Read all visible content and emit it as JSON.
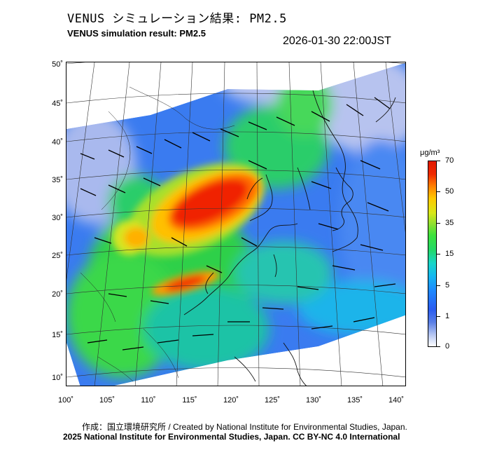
{
  "header": {
    "title_jp": "VENUS シミュレーション結果: PM2.5",
    "title_en": "VENUS simulation result: PM2.5",
    "timestamp": "2026-01-30 22:00JST"
  },
  "map": {
    "lat_labels": [
      "50˚",
      "45˚",
      "40˚",
      "35˚",
      "30˚",
      "25˚",
      "20˚",
      "15˚",
      "10˚"
    ],
    "lon_labels": [
      "100˚",
      "105˚",
      "110˚",
      "115˚",
      "120˚",
      "125˚",
      "130˚",
      "135˚",
      "140˚"
    ],
    "lat_range": [
      9,
      51
    ],
    "lon_range": [
      100,
      141
    ]
  },
  "colorbar": {
    "unit": "μg/m³",
    "labels": [
      "70",
      "50",
      "35",
      "15",
      "5",
      "1",
      "0"
    ],
    "colors": {
      "clean": "#ffffff",
      "low": "#2a5cf0",
      "moderate": "#22d868",
      "high": "#ffc800",
      "very_high": "#e01800"
    }
  },
  "footer": {
    "credit_line": "作成：国立環境研究所 / Created by National Institute for Environmental Studies, Japan.",
    "copyright_line": "2025 National Institute for Environmental Studies, Japan. CC BY-NC 4.0 International"
  }
}
